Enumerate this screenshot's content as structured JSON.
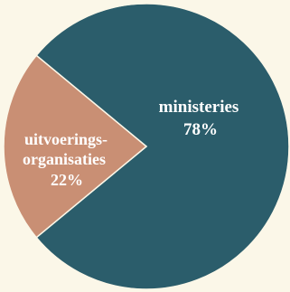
{
  "chart_data": {
    "type": "pie",
    "slices": [
      {
        "label": "ministeries",
        "value": 78,
        "value_label": "78%",
        "color": "#2b5d6b"
      },
      {
        "label": "uitvoerings-organisaties",
        "label_lines": [
          "uitvoerings-",
          "organisaties"
        ],
        "value": 22,
        "value_label": "22%",
        "color": "#c98f74"
      }
    ]
  }
}
